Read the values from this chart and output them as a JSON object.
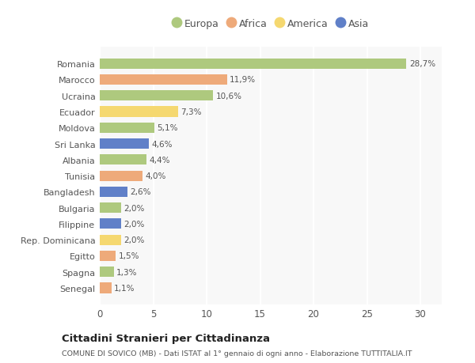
{
  "countries": [
    "Romania",
    "Marocco",
    "Ucraina",
    "Ecuador",
    "Moldova",
    "Sri Lanka",
    "Albania",
    "Tunisia",
    "Bangladesh",
    "Bulgaria",
    "Filippine",
    "Rep. Dominicana",
    "Egitto",
    "Spagna",
    "Senegal"
  ],
  "values": [
    28.7,
    11.9,
    10.6,
    7.3,
    5.1,
    4.6,
    4.4,
    4.0,
    2.6,
    2.0,
    2.0,
    2.0,
    1.5,
    1.3,
    1.1
  ],
  "labels": [
    "28,7%",
    "11,9%",
    "10,6%",
    "7,3%",
    "5,1%",
    "4,6%",
    "4,4%",
    "4,0%",
    "2,6%",
    "2,0%",
    "2,0%",
    "2,0%",
    "1,5%",
    "1,3%",
    "1,1%"
  ],
  "continents": [
    "Europa",
    "Africa",
    "Europa",
    "America",
    "Europa",
    "Asia",
    "Europa",
    "Africa",
    "Asia",
    "Europa",
    "Asia",
    "America",
    "Africa",
    "Europa",
    "Africa"
  ],
  "colors": {
    "Europa": "#aec97e",
    "Africa": "#eeaa7a",
    "America": "#f5d870",
    "Asia": "#6080c8"
  },
  "legend_order": [
    "Europa",
    "Africa",
    "America",
    "Asia"
  ],
  "title": "Cittadini Stranieri per Cittadinanza",
  "subtitle": "COMUNE DI SOVICO (MB) - Dati ISTAT al 1° gennaio di ogni anno - Elaborazione TUTTITALIA.IT",
  "xlim": [
    0,
    32
  ],
  "xticks": [
    0,
    5,
    10,
    15,
    20,
    25,
    30
  ],
  "bg_color": "#ffffff",
  "plot_bg_color": "#f8f8f8",
  "grid_color": "#ffffff",
  "bar_alpha": 1.0,
  "bar_height": 0.65
}
